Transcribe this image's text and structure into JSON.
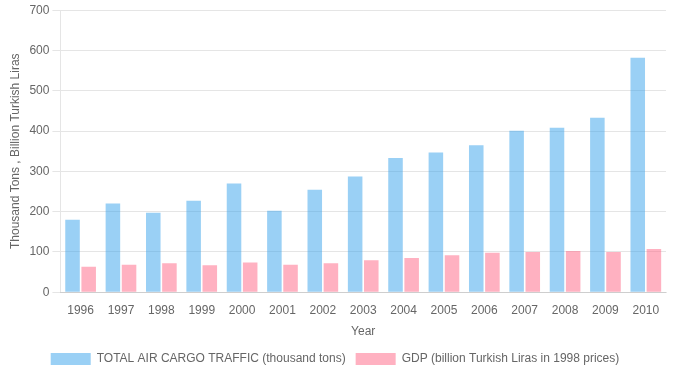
{
  "chart_data": {
    "type": "bar",
    "categories": [
      "1996",
      "1997",
      "1998",
      "1999",
      "2000",
      "2001",
      "2002",
      "2003",
      "2004",
      "2005",
      "2006",
      "2007",
      "2008",
      "2009",
      "2010"
    ],
    "series": [
      {
        "name": "TOTAL AIR CARGO TRAFFIC (thousand tons)",
        "values": [
          180,
          220,
          197,
          227,
          270,
          202,
          254,
          287,
          333,
          347,
          365,
          401,
          408,
          433,
          582
        ]
      },
      {
        "name": "GDP (billion Turkish Liras in 1998 prices)",
        "values": [
          63,
          68,
          72,
          67,
          74,
          68,
          72,
          79,
          85,
          92,
          98,
          100,
          102,
          100,
          107
        ]
      }
    ],
    "xlabel": "Year",
    "ylabel": "Thousand Tons , Billion Turkish Liras",
    "ylim": [
      0,
      700
    ],
    "yticks": [
      0,
      100,
      200,
      300,
      400,
      500,
      600,
      700
    ],
    "grid": true,
    "legend": "bottom"
  }
}
